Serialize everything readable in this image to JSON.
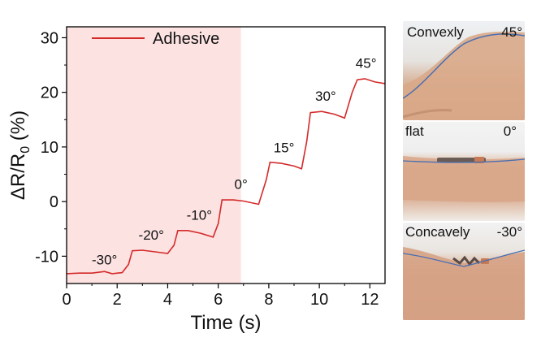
{
  "chart_data": {
    "type": "line",
    "xlabel": "Time (s)",
    "ylabel_main": "ΔR/R",
    "ylabel_sub": "0",
    "ylabel_unit": " (%)",
    "xlim": [
      0,
      12.6
    ],
    "ylim": [
      -15,
      32
    ],
    "xticks": [
      0,
      2,
      4,
      6,
      8,
      10,
      12
    ],
    "yticks": [
      -10,
      0,
      10,
      20,
      30
    ],
    "grid": false,
    "legend_position": "top-left",
    "shaded_region": {
      "x_start": 0,
      "x_end": 6.9,
      "color": "#fde2e2"
    },
    "series": [
      {
        "name": "Adhesive",
        "color": "#d42a2a",
        "points": [
          [
            0,
            -13.2
          ],
          [
            0.5,
            -13.1
          ],
          [
            1.0,
            -13.1
          ],
          [
            1.5,
            -12.8
          ],
          [
            1.8,
            -13.2
          ],
          [
            2.2,
            -13.0
          ],
          [
            2.45,
            -11.5
          ],
          [
            2.6,
            -9.0
          ],
          [
            3.0,
            -8.9
          ],
          [
            3.5,
            -9.2
          ],
          [
            4.0,
            -9.5
          ],
          [
            4.25,
            -8.0
          ],
          [
            4.4,
            -5.3
          ],
          [
            4.8,
            -5.3
          ],
          [
            5.3,
            -5.8
          ],
          [
            5.8,
            -6.5
          ],
          [
            6.0,
            -4.0
          ],
          [
            6.15,
            0.3
          ],
          [
            6.6,
            0.3
          ],
          [
            7.0,
            0.1
          ],
          [
            7.6,
            -0.5
          ],
          [
            7.9,
            4.0
          ],
          [
            8.05,
            7.2
          ],
          [
            8.5,
            7.0
          ],
          [
            9.0,
            6.5
          ],
          [
            9.3,
            6.0
          ],
          [
            9.5,
            11.0
          ],
          [
            9.65,
            16.3
          ],
          [
            10.1,
            16.5
          ],
          [
            10.6,
            16.0
          ],
          [
            11.0,
            15.3
          ],
          [
            11.3,
            20.0
          ],
          [
            11.5,
            22.3
          ],
          [
            11.8,
            22.5
          ],
          [
            12.2,
            21.9
          ],
          [
            12.6,
            21.6
          ]
        ]
      }
    ],
    "annotations": [
      {
        "text": "-30°",
        "x": 1.5,
        "y": -11.5
      },
      {
        "text": "-20°",
        "x": 3.35,
        "y": -7.0
      },
      {
        "text": "-10°",
        "x": 5.25,
        "y": -3.3
      },
      {
        "text": "0°",
        "x": 6.9,
        "y": 2.3
      },
      {
        "text": "15°",
        "x": 8.6,
        "y": 9.0
      },
      {
        "text": "30°",
        "x": 10.25,
        "y": 18.5
      },
      {
        "text": "45°",
        "x": 11.85,
        "y": 24.5
      }
    ]
  },
  "photos": [
    {
      "caption_left": "Convexly",
      "caption_right": "45°"
    },
    {
      "caption_left": "flat",
      "caption_right": "0°"
    },
    {
      "caption_left": "Concavely",
      "caption_right": "-30°"
    }
  ]
}
